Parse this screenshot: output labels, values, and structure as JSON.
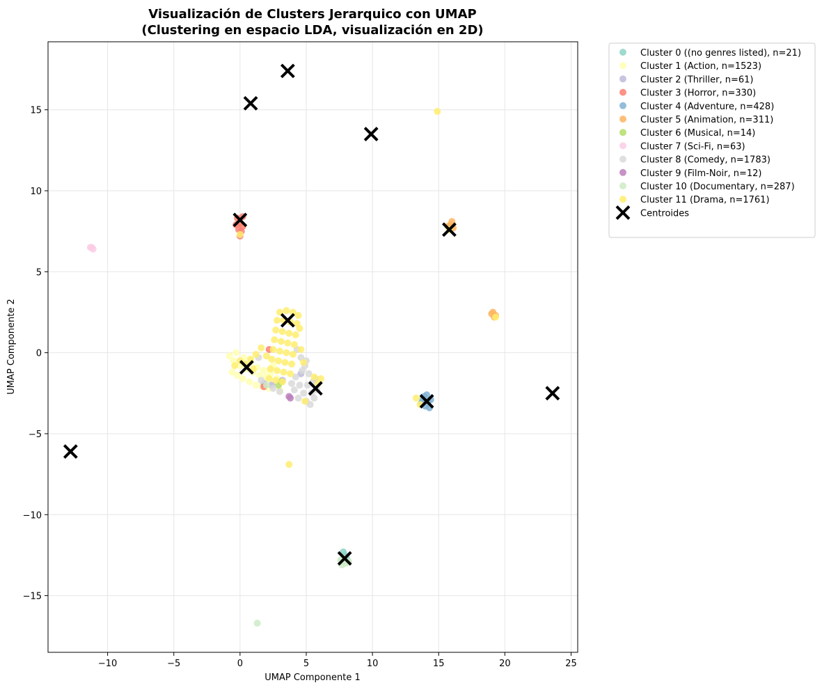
{
  "chart_data": {
    "type": "scatter",
    "title": "Visualización de Clusters Jerarquico con UMAP",
    "subtitle": "(Clustering en espacio LDA, visualización en 2D)",
    "xlabel": "UMAP Componente 1",
    "ylabel": "UMAP Componente 2",
    "xlim": [
      -14.5,
      25.5
    ],
    "ylim": [
      -18.5,
      19.2
    ],
    "x_ticks": [
      -10,
      -5,
      0,
      5,
      10,
      15,
      20,
      25
    ],
    "y_ticks": [
      -15,
      -10,
      -5,
      0,
      5,
      10,
      15
    ],
    "grid": true,
    "legend_position": "outside-top-right",
    "series": [
      {
        "name": "Cluster 0 ((no genres listed), n=21)",
        "color": "#8dd3c7",
        "points": [
          {
            "x": 7.9,
            "y": -12.5
          },
          {
            "x": 7.7,
            "y": -12.9
          },
          {
            "x": 8.1,
            "y": -12.8
          },
          {
            "x": 7.8,
            "y": -12.3
          },
          {
            "x": 8.0,
            "y": -12.6
          }
        ]
      },
      {
        "name": "Cluster 1 (Action, n=1523)",
        "color": "#ffffb3",
        "points": [
          {
            "x": -0.5,
            "y": -0.5
          },
          {
            "x": 0.0,
            "y": -0.8
          },
          {
            "x": 0.5,
            "y": -1.0
          },
          {
            "x": 1.0,
            "y": -1.2
          },
          {
            "x": 1.5,
            "y": -1.4
          },
          {
            "x": 2.0,
            "y": -1.5
          },
          {
            "x": -0.8,
            "y": -0.2
          },
          {
            "x": -0.3,
            "y": 0.0
          },
          {
            "x": 0.3,
            "y": -0.3
          },
          {
            "x": 0.8,
            "y": -0.6
          },
          {
            "x": 1.3,
            "y": -0.9
          },
          {
            "x": 1.8,
            "y": -1.1
          },
          {
            "x": 2.3,
            "y": -1.3
          },
          {
            "x": 0.2,
            "y": -1.6
          },
          {
            "x": 0.7,
            "y": -1.8
          },
          {
            "x": 1.2,
            "y": -2.0
          },
          {
            "x": 1.7,
            "y": -2.1
          },
          {
            "x": 2.2,
            "y": -2.2
          },
          {
            "x": -0.6,
            "y": -1.2
          },
          {
            "x": -0.2,
            "y": -1.4
          },
          {
            "x": 2.5,
            "y": -0.8
          },
          {
            "x": 2.8,
            "y": -1.6
          },
          {
            "x": 3.0,
            "y": -2.3
          }
        ]
      },
      {
        "name": "Cluster 2 (Thriller, n=61)",
        "color": "#bebada",
        "points": [
          {
            "x": 1.8,
            "y": -1.9
          },
          {
            "x": 2.4,
            "y": -2.0
          },
          {
            "x": 4.6,
            "y": -1.3
          },
          {
            "x": 3.2,
            "y": -1.7
          }
        ]
      },
      {
        "name": "Cluster 3 (Horror, n=330)",
        "color": "#fb8072",
        "points": [
          {
            "x": -0.2,
            "y": 8.3
          },
          {
            "x": 0.0,
            "y": 8.0
          },
          {
            "x": 0.2,
            "y": 7.8
          },
          {
            "x": -0.3,
            "y": 7.9
          },
          {
            "x": 0.1,
            "y": 7.5
          },
          {
            "x": 0.0,
            "y": 7.2
          },
          {
            "x": 0.2,
            "y": 8.4
          },
          {
            "x": -0.1,
            "y": 7.6
          },
          {
            "x": 1.8,
            "y": -2.1
          },
          {
            "x": 2.2,
            "y": 0.2
          }
        ]
      },
      {
        "name": "Cluster 4 (Adventure, n=428)",
        "color": "#80b1d3",
        "points": [
          {
            "x": 13.9,
            "y": -2.7
          },
          {
            "x": 14.2,
            "y": -3.0
          },
          {
            "x": 14.0,
            "y": -3.3
          },
          {
            "x": 14.4,
            "y": -2.9
          },
          {
            "x": 13.7,
            "y": -3.1
          },
          {
            "x": 14.3,
            "y": -3.4
          },
          {
            "x": 14.1,
            "y": -2.6
          },
          {
            "x": 13.8,
            "y": -2.9
          }
        ]
      },
      {
        "name": "Cluster 5 (Animation, n=311)",
        "color": "#fdb462",
        "points": [
          {
            "x": 15.9,
            "y": 7.9
          },
          {
            "x": 16.1,
            "y": 7.7
          },
          {
            "x": 15.7,
            "y": 7.8
          },
          {
            "x": 16.0,
            "y": 8.1
          },
          {
            "x": 19.0,
            "y": 2.4
          },
          {
            "x": 19.2,
            "y": 2.2
          },
          {
            "x": 19.3,
            "y": 2.3
          },
          {
            "x": 19.1,
            "y": 2.5
          }
        ]
      },
      {
        "name": "Cluster 6 (Musical, n=14)",
        "color": "#b3de69",
        "points": [
          {
            "x": 2.9,
            "y": -2.0
          },
          {
            "x": 3.1,
            "y": -1.8
          }
        ]
      },
      {
        "name": "Cluster 7 (Sci-Fi, n=63)",
        "color": "#fccde5",
        "points": [
          {
            "x": -11.2,
            "y": 6.5
          },
          {
            "x": -11.1,
            "y": 6.4
          },
          {
            "x": -11.3,
            "y": 6.5
          }
        ]
      },
      {
        "name": "Cluster 8 (Comedy, n=1783)",
        "color": "#d9d9d9",
        "points": [
          {
            "x": 4.2,
            "y": -1.5
          },
          {
            "x": 4.5,
            "y": -2.0
          },
          {
            "x": 4.8,
            "y": -2.5
          },
          {
            "x": 5.0,
            "y": -3.0
          },
          {
            "x": 5.3,
            "y": -3.2
          },
          {
            "x": 5.6,
            "y": -2.8
          },
          {
            "x": 5.8,
            "y": -2.3
          },
          {
            "x": 5.5,
            "y": -1.8
          },
          {
            "x": 5.2,
            "y": -1.3
          },
          {
            "x": 4.9,
            "y": -0.8
          },
          {
            "x": 4.6,
            "y": -0.3
          },
          {
            "x": 4.3,
            "y": 0.2
          },
          {
            "x": 5.0,
            "y": -0.5
          },
          {
            "x": 4.4,
            "y": -2.8
          },
          {
            "x": 4.1,
            "y": -2.3
          },
          {
            "x": 3.9,
            "y": -1.9
          },
          {
            "x": 5.4,
            "y": -2.5
          },
          {
            "x": 5.7,
            "y": -1.6
          },
          {
            "x": 2.5,
            "y": -2.2
          },
          {
            "x": 3.0,
            "y": -2.4
          },
          {
            "x": 1.6,
            "y": -1.7
          },
          {
            "x": 1.4,
            "y": -0.3
          },
          {
            "x": 4.7,
            "y": -1.1
          },
          {
            "x": 5.1,
            "y": -2.0
          }
        ]
      },
      {
        "name": "Cluster 9 (Film-Noir, n=12)",
        "color": "#bc80bd",
        "points": [
          {
            "x": 3.8,
            "y": -2.8
          },
          {
            "x": 3.7,
            "y": -2.7
          }
        ]
      },
      {
        "name": "Cluster 10 (Documentary, n=287)",
        "color": "#ccebc5",
        "points": [
          {
            "x": 7.6,
            "y": -12.8
          },
          {
            "x": 8.0,
            "y": -13.0
          },
          {
            "x": 7.8,
            "y": -12.7
          },
          {
            "x": 8.2,
            "y": -12.9
          },
          {
            "x": 7.7,
            "y": -13.1
          },
          {
            "x": 1.3,
            "y": -16.7
          },
          {
            "x": 2.0,
            "y": -2.0
          }
        ]
      },
      {
        "name": "Cluster 11 (Drama, n=1761)",
        "color": "#ffed6f",
        "points": [
          {
            "x": 3.0,
            "y": 2.5
          },
          {
            "x": 3.5,
            "y": 2.6
          },
          {
            "x": 4.0,
            "y": 2.5
          },
          {
            "x": 4.4,
            "y": 2.3
          },
          {
            "x": 2.8,
            "y": 2.0
          },
          {
            "x": 3.3,
            "y": 2.0
          },
          {
            "x": 3.8,
            "y": 1.9
          },
          {
            "x": 4.3,
            "y": 1.8
          },
          {
            "x": 2.7,
            "y": 1.4
          },
          {
            "x": 3.2,
            "y": 1.3
          },
          {
            "x": 3.7,
            "y": 1.2
          },
          {
            "x": 4.2,
            "y": 1.1
          },
          {
            "x": 2.6,
            "y": 0.8
          },
          {
            "x": 3.1,
            "y": 0.7
          },
          {
            "x": 3.6,
            "y": 0.6
          },
          {
            "x": 4.1,
            "y": 0.5
          },
          {
            "x": 2.5,
            "y": 0.2
          },
          {
            "x": 3.0,
            "y": 0.1
          },
          {
            "x": 3.5,
            "y": 0.0
          },
          {
            "x": 4.0,
            "y": -0.1
          },
          {
            "x": 2.4,
            "y": -0.4
          },
          {
            "x": 2.9,
            "y": -0.5
          },
          {
            "x": 3.4,
            "y": -0.6
          },
          {
            "x": 3.9,
            "y": -0.7
          },
          {
            "x": 2.3,
            "y": -1.0
          },
          {
            "x": 2.8,
            "y": -1.1
          },
          {
            "x": 3.3,
            "y": -1.2
          },
          {
            "x": 3.8,
            "y": -1.3
          },
          {
            "x": 2.2,
            "y": -1.6
          },
          {
            "x": 2.7,
            "y": -1.7
          },
          {
            "x": 3.2,
            "y": -1.8
          },
          {
            "x": 2.0,
            "y": -0.2
          },
          {
            "x": 1.6,
            "y": 0.3
          },
          {
            "x": 1.2,
            "y": -0.1
          },
          {
            "x": 0.8,
            "y": -0.4
          },
          {
            "x": 0.4,
            "y": -0.7
          },
          {
            "x": 0.0,
            "y": -0.5
          },
          {
            "x": -0.4,
            "y": -0.8
          },
          {
            "x": 1.0,
            "y": -1.0
          },
          {
            "x": 4.6,
            "y": 0.2
          },
          {
            "x": 4.5,
            "y": 1.5
          },
          {
            "x": 4.8,
            "y": -0.6
          },
          {
            "x": 5.6,
            "y": -1.5
          },
          {
            "x": 6.1,
            "y": -1.6
          },
          {
            "x": 5.9,
            "y": -1.9
          },
          {
            "x": 4.9,
            "y": -3.0
          },
          {
            "x": 13.3,
            "y": -2.8
          },
          {
            "x": 13.6,
            "y": -3.2
          },
          {
            "x": 14.9,
            "y": 14.9
          },
          {
            "x": 3.7,
            "y": -6.9
          },
          {
            "x": 0.0,
            "y": 7.3
          },
          {
            "x": 19.3,
            "y": 2.2
          },
          {
            "x": 15.8,
            "y": 7.6
          }
        ]
      }
    ],
    "centroids": {
      "name": "Centroides",
      "color": "#000000",
      "points": [
        {
          "x": 3.6,
          "y": 17.4
        },
        {
          "x": 0.8,
          "y": 15.4
        },
        {
          "x": 9.9,
          "y": 13.5
        },
        {
          "x": 0.0,
          "y": 8.2
        },
        {
          "x": 15.8,
          "y": 7.6
        },
        {
          "x": 3.6,
          "y": 2.0
        },
        {
          "x": 0.5,
          "y": -0.9
        },
        {
          "x": 5.7,
          "y": -2.2
        },
        {
          "x": 14.1,
          "y": -3.0
        },
        {
          "x": 23.6,
          "y": -2.5
        },
        {
          "x": -12.8,
          "y": -6.1
        },
        {
          "x": 7.9,
          "y": -12.7
        }
      ]
    }
  }
}
